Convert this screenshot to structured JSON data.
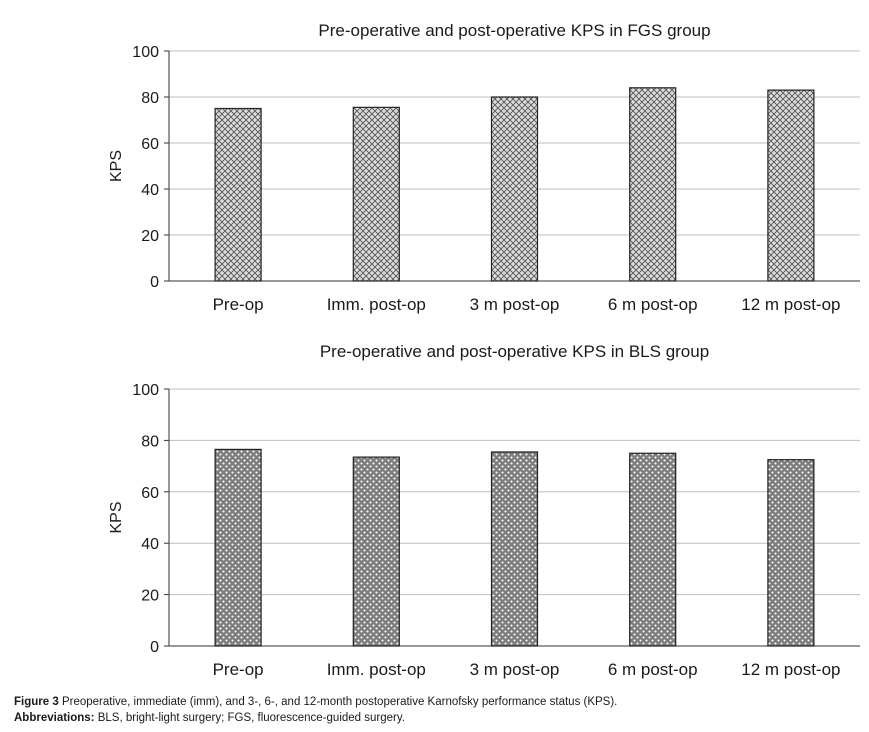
{
  "chart_data": [
    {
      "type": "bar",
      "title": "Pre-operative and post-operative KPS in FGS group",
      "xlabel": "",
      "ylabel": "KPS",
      "categories": [
        "Pre-op",
        "Imm. post-op",
        "3 m post-op",
        "6 m post-op",
        "12 m post-op"
      ],
      "values": [
        75,
        75.5,
        80,
        84,
        83
      ],
      "ylim": [
        0,
        100
      ],
      "yticks": [
        "0",
        "20",
        "40",
        "60",
        "80",
        "100"
      ],
      "grid": true,
      "fill_pattern": "crosshatch",
      "bar_color": "#d9d9d9"
    },
    {
      "type": "bar",
      "title": "Pre-operative and post-operative KPS in BLS group",
      "xlabel": "",
      "ylabel": "KPS",
      "categories": [
        "Pre-op",
        "Imm. post-op",
        "3 m post-op",
        "6 m post-op",
        "12 m post-op"
      ],
      "values": [
        76.5,
        73.5,
        75.5,
        75,
        72.5
      ],
      "ylim": [
        0,
        100
      ],
      "yticks": [
        "0",
        "20",
        "40",
        "60",
        "80",
        "100"
      ],
      "grid": true,
      "fill_pattern": "dotted",
      "bar_color": "#7a7a7a"
    }
  ],
  "caption": {
    "figure_label": "Figure 3",
    "figure_text": "Preoperative, immediate (imm), and 3-, 6-, and 12-month postoperative Karnofsky performance status (KPS).",
    "abbreviations_label": "Abbreviations:",
    "abbreviations_text": "BLS, bright-light surgery; FGS, fluorescence-guided surgery."
  }
}
